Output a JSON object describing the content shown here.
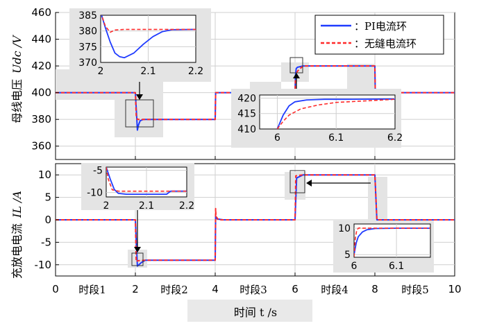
{
  "colors": {
    "pi": "#1f3bff",
    "seamless": "#ff2a2a",
    "grid": "#cfcfcf",
    "shade": "#e4e4e4"
  },
  "xlabel": "时间 t /s",
  "segments": [
    "时段1",
    "时段2",
    "时段3",
    "时段4",
    "时段5"
  ],
  "legend": [
    {
      "label": "：PI电流环",
      "style": "solid",
      "color": "#1f3bff"
    },
    {
      "label": "：无缝电流环",
      "style": "dashed",
      "color": "#ff2a2a"
    }
  ],
  "chart_data": [
    {
      "type": "line",
      "ylabel_main": "母线电压",
      "ylabel_unit": "Udc /V",
      "xlim": [
        0,
        10
      ],
      "ylim": [
        350,
        460
      ],
      "xticks": [
        0,
        2,
        4,
        6,
        8,
        10
      ],
      "yticks": [
        360,
        380,
        400,
        420,
        440,
        460
      ],
      "series": [
        {
          "name": "PI电流环",
          "x": [
            0,
            2.0,
            2.03,
            2.05,
            2.08,
            2.12,
            2.2,
            4.0,
            4.01,
            6.0,
            6.01,
            6.03,
            6.06,
            6.2,
            8.0,
            8.01,
            10
          ],
          "y": [
            400,
            400,
            384,
            372,
            376,
            379,
            380,
            380,
            400,
            400,
            413,
            418,
            419,
            420,
            420,
            400,
            400
          ]
        },
        {
          "name": "无缝电流环",
          "x": [
            0,
            2.0,
            2.02,
            2.05,
            2.2,
            4.0,
            4.01,
            6.0,
            6.01,
            6.03,
            6.06,
            6.2,
            8.0,
            8.01,
            10
          ],
          "y": [
            400,
            400,
            383,
            380,
            380,
            380,
            400,
            400,
            411,
            414,
            416,
            420,
            420,
            400,
            400
          ]
        }
      ],
      "inset1": {
        "xlim": [
          2,
          2.2
        ],
        "ylim": [
          370,
          385
        ],
        "xticks": [
          2,
          2.1,
          2.2
        ],
        "xticklabels": [
          "2",
          "2.1",
          "2.2"
        ],
        "yticks": [
          370,
          375,
          380,
          385
        ],
        "pi": {
          "x": [
            2.0,
            2.01,
            2.02,
            2.03,
            2.04,
            2.05,
            2.07,
            2.09,
            2.11,
            2.13,
            2.15,
            2.2
          ],
          "y": [
            386,
            381,
            376.5,
            373,
            371.8,
            371.5,
            373,
            375.8,
            378.2,
            379.8,
            380.4,
            380.5
          ]
        },
        "seamless": {
          "x": [
            2.0,
            2.01,
            2.02,
            2.03,
            2.05,
            2.1,
            2.2
          ],
          "y": [
            386,
            381.5,
            379.6,
            380.3,
            380.5,
            380.5,
            380.5
          ]
        }
      },
      "inset2": {
        "xlim": [
          5.97,
          6.2
        ],
        "ylim": [
          410,
          421
        ],
        "xticks": [
          6,
          6.1,
          6.2
        ],
        "xticklabels": [
          "6",
          "6.1",
          "6.2"
        ],
        "yticks": [
          410,
          415,
          420
        ],
        "pi": {
          "x": [
            6.0,
            6.01,
            6.02,
            6.03,
            6.05,
            6.08,
            6.12,
            6.2
          ],
          "y": [
            410,
            414.5,
            417.5,
            418.8,
            419.4,
            419.6,
            419.6,
            419.7
          ]
        },
        "seamless": {
          "x": [
            6.0,
            6.01,
            6.02,
            6.04,
            6.07,
            6.1,
            6.15,
            6.2
          ],
          "y": [
            410,
            412.5,
            414.5,
            416.5,
            417.8,
            418.6,
            419.1,
            419.6
          ]
        }
      }
    },
    {
      "type": "line",
      "ylabel_main": "充放电电流",
      "ylabel_unit": "IL /A",
      "xlim": [
        0,
        10
      ],
      "ylim": [
        -12.5,
        12.5
      ],
      "xticks": [
        0,
        2,
        4,
        6,
        8,
        10
      ],
      "yticks": [
        -10,
        -5,
        0,
        5,
        10
      ],
      "series": [
        {
          "name": "PI电流环",
          "x": [
            0,
            2.0,
            2.05,
            2.15,
            2.25,
            4.0,
            4.01,
            4.05,
            4.2,
            6.0,
            6.04,
            6.2,
            8.0,
            8.05,
            10
          ],
          "y": [
            0,
            0,
            -10.3,
            -9.5,
            -9,
            -9,
            0.8,
            0.2,
            0,
            0,
            9.3,
            10,
            10,
            0,
            0
          ]
        },
        {
          "name": "无缝电流环",
          "x": [
            0,
            2.0,
            2.02,
            2.06,
            2.25,
            4.0,
            4.01,
            4.02,
            4.08,
            6.0,
            6.02,
            6.2,
            8.0,
            8.05,
            10
          ],
          "y": [
            0,
            0,
            -9.3,
            -9.1,
            -9,
            -9,
            2.5,
            0.8,
            0,
            0,
            9.8,
            10,
            10,
            0,
            0
          ]
        }
      ],
      "inset3": {
        "xlim": [
          2,
          2.2
        ],
        "ylim": [
          -11,
          -4.3
        ],
        "xticks": [
          2,
          2.1,
          2.2
        ],
        "xticklabels": [
          "2",
          "2.1",
          "2.2"
        ],
        "yticks": [
          -10,
          -5
        ],
        "yticklabels": [
          "-10",
          "-5"
        ],
        "pi": {
          "x": [
            2.0,
            2.01,
            2.02,
            2.03,
            2.05,
            2.1,
            2.15,
            2.16,
            2.2
          ],
          "y": [
            -4.3,
            -7,
            -9.3,
            -10.2,
            -10.4,
            -10.4,
            -10.4,
            -9.7,
            -9.7
          ]
        },
        "seamless": {
          "x": [
            2.0,
            2.005,
            2.015,
            2.03,
            2.2
          ],
          "y": [
            -4.3,
            -7,
            -9.4,
            -9.7,
            -9.7
          ]
        }
      },
      "inset4": {
        "xlim": [
          6,
          6.18
        ],
        "ylim": [
          4.5,
          10.8
        ],
        "xticks": [
          6,
          6.1
        ],
        "xticklabels": [
          "6",
          "6.1"
        ],
        "yticks": [
          5,
          10
        ],
        "pi": {
          "x": [
            6.0,
            6.005,
            6.01,
            6.02,
            6.03,
            6.05,
            6.1,
            6.18
          ],
          "y": [
            5,
            7.2,
            8.4,
            9.3,
            9.7,
            9.95,
            10,
            10
          ]
        },
        "seamless": {
          "x": [
            6.0,
            6.003,
            6.006,
            6.01,
            6.015,
            6.02,
            6.18
          ],
          "y": [
            4.6,
            8,
            9.5,
            10,
            10.05,
            10,
            10
          ]
        }
      }
    }
  ]
}
